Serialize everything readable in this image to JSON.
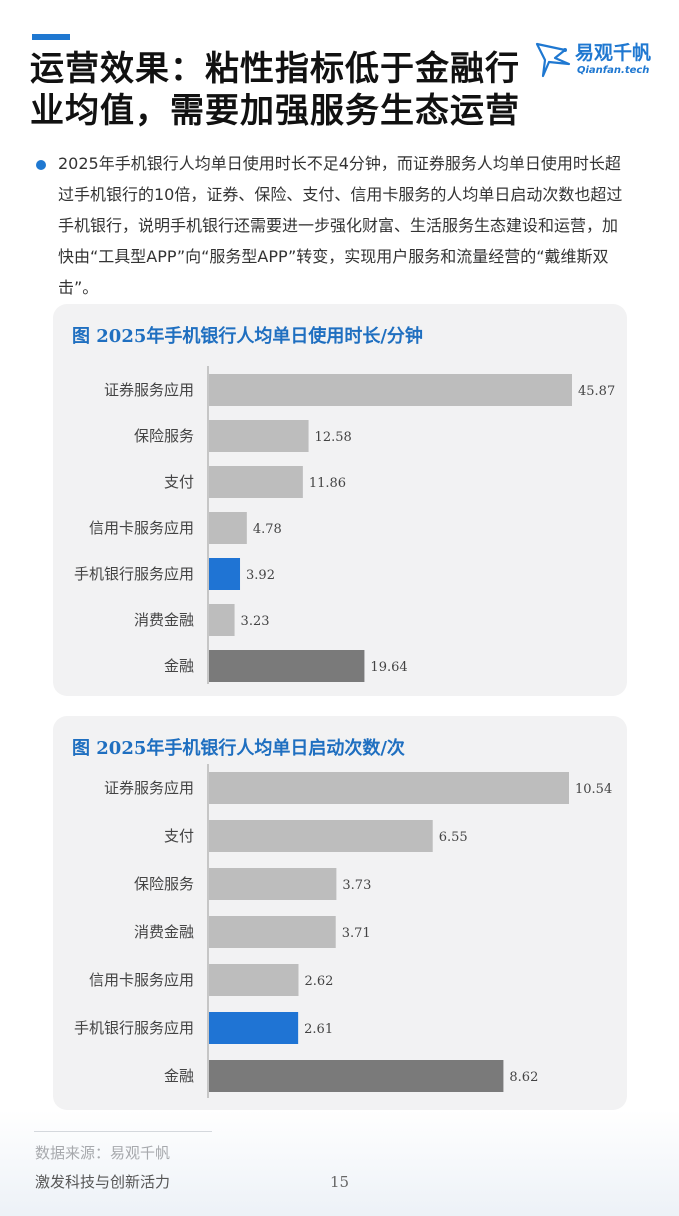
{
  "header": {
    "title": "运营效果：粘性指标低于金融行业均值，需要加强服务生态运营",
    "logo_cn": "易观千帆",
    "logo_en": "Qianfan.tech"
  },
  "intro": "2025年手机银行人均单日使用时长不足4分钟，而证券服务人均单日使用时长超过手机银行的10倍，证券、保险、支付、信用卡服务的人均单日启动次数也超过手机银行，说明手机银行还需要进一步强化财富、生活服务生态建设和运营，加快由“工具型APP”向“服务型APP”转变，实现用户服务和流量经营的“戴维斯双击”。",
  "colors": {
    "accent": "#1f78d1",
    "bar_default": "#bdbdbd",
    "bar_highlight": "#1f74d4",
    "bar_dark": "#7a7a7a"
  },
  "chart_data": [
    {
      "type": "bar",
      "orientation": "horizontal",
      "title": "图  2025年手机银行人均单日使用时长/分钟",
      "categories": [
        "证券服务应用",
        "保险服务",
        "支付",
        "信用卡服务应用",
        "手机银行服务应用",
        "消费金融",
        "金融"
      ],
      "values": [
        45.87,
        12.58,
        11.86,
        4.78,
        3.92,
        3.23,
        19.64
      ],
      "value_labels": [
        "45.87",
        "12.58",
        "11.86",
        "4.78",
        "3.92",
        "3.23",
        "19.64"
      ],
      "bar_colors": [
        "default",
        "default",
        "default",
        "default",
        "highlight",
        "default",
        "dark"
      ],
      "xlim": [
        0,
        45.87
      ],
      "grid": false,
      "legend": "none"
    },
    {
      "type": "bar",
      "orientation": "horizontal",
      "title": "图  2025年手机银行人均单日启动次数/次",
      "categories": [
        "证券服务应用",
        "支付",
        "保险服务",
        "消费金融",
        "信用卡服务应用",
        "手机银行服务应用",
        "金融"
      ],
      "values": [
        10.54,
        6.55,
        3.73,
        3.71,
        2.62,
        2.61,
        8.62
      ],
      "value_labels": [
        "10.54",
        "6.55",
        "3.73",
        "3.71",
        "2.62",
        "2.61",
        "8.62"
      ],
      "bar_colors": [
        "default",
        "default",
        "default",
        "default",
        "default",
        "highlight",
        "dark"
      ],
      "xlim": [
        0,
        10.54
      ],
      "grid": false,
      "legend": "none"
    }
  ],
  "footer": {
    "source": "数据来源：易观千帆",
    "slogan": "激发科技与创新活力",
    "page_number": "15"
  }
}
